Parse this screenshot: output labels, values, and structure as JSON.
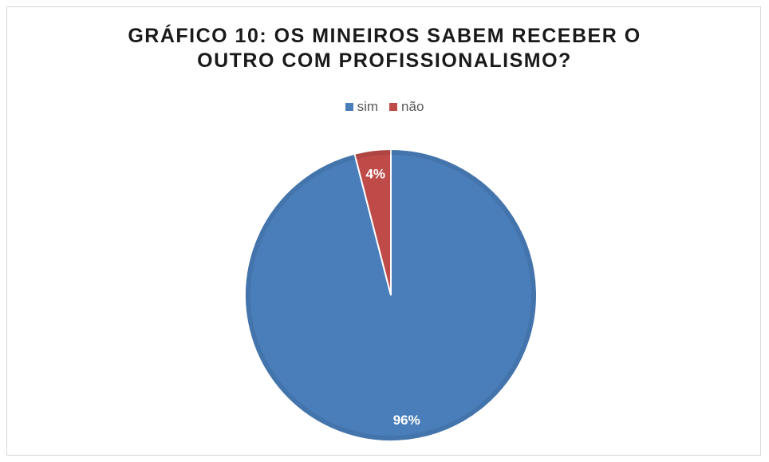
{
  "chart_data": {
    "type": "pie",
    "title_lines": [
      "GRÁFICO 10: OS MINEIROS SABEM RECEBER O",
      "OUTRO COM PROFISSIONALISMO?"
    ],
    "categories": [
      "sim",
      "não"
    ],
    "values": [
      96,
      4
    ],
    "data_labels": [
      "96%",
      "4%"
    ],
    "colors": [
      "#4a7ebb",
      "#be4b48"
    ],
    "legend_position": "top"
  }
}
